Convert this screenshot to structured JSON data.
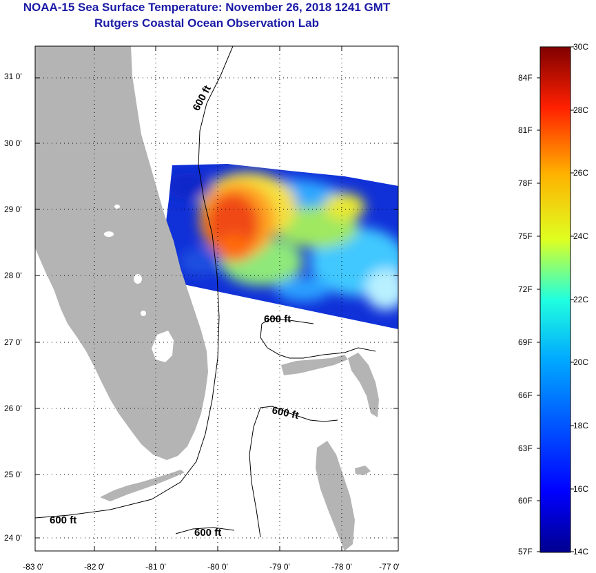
{
  "title": {
    "line1": "NOAA-15 Sea Surface Temperature:  November 26, 2018 1241 GMT",
    "line2": "Rutgers Coastal Ocean Observation Lab"
  },
  "map": {
    "lat_labels": [
      "31 0'",
      "30 0'",
      "29 0'",
      "28 0'",
      "27 0'",
      "26 0'",
      "25 0'",
      "24 0'"
    ],
    "lon_labels": [
      "-83 0'",
      "-82 0'",
      "-81 0'",
      "-80 0'",
      "-79 0'",
      "-78 0'",
      "-77 0'"
    ],
    "isobath_labels": [
      "600 ft",
      "600 ft",
      "600 ft",
      "600 ft"
    ]
  },
  "colorbar": {
    "fahrenheit": [
      "84F",
      "81F",
      "78F",
      "75F",
      "72F",
      "69F",
      "66F",
      "63F",
      "60F",
      "57F"
    ],
    "celsius": [
      "30C",
      "28C",
      "26C",
      "24C",
      "22C",
      "20C",
      "18C",
      "16C",
      "14C"
    ]
  },
  "colors": {
    "title": "#1a1aa6",
    "land": "#b4b4b4",
    "warm": "#e8321e",
    "cold": "#00008f"
  }
}
